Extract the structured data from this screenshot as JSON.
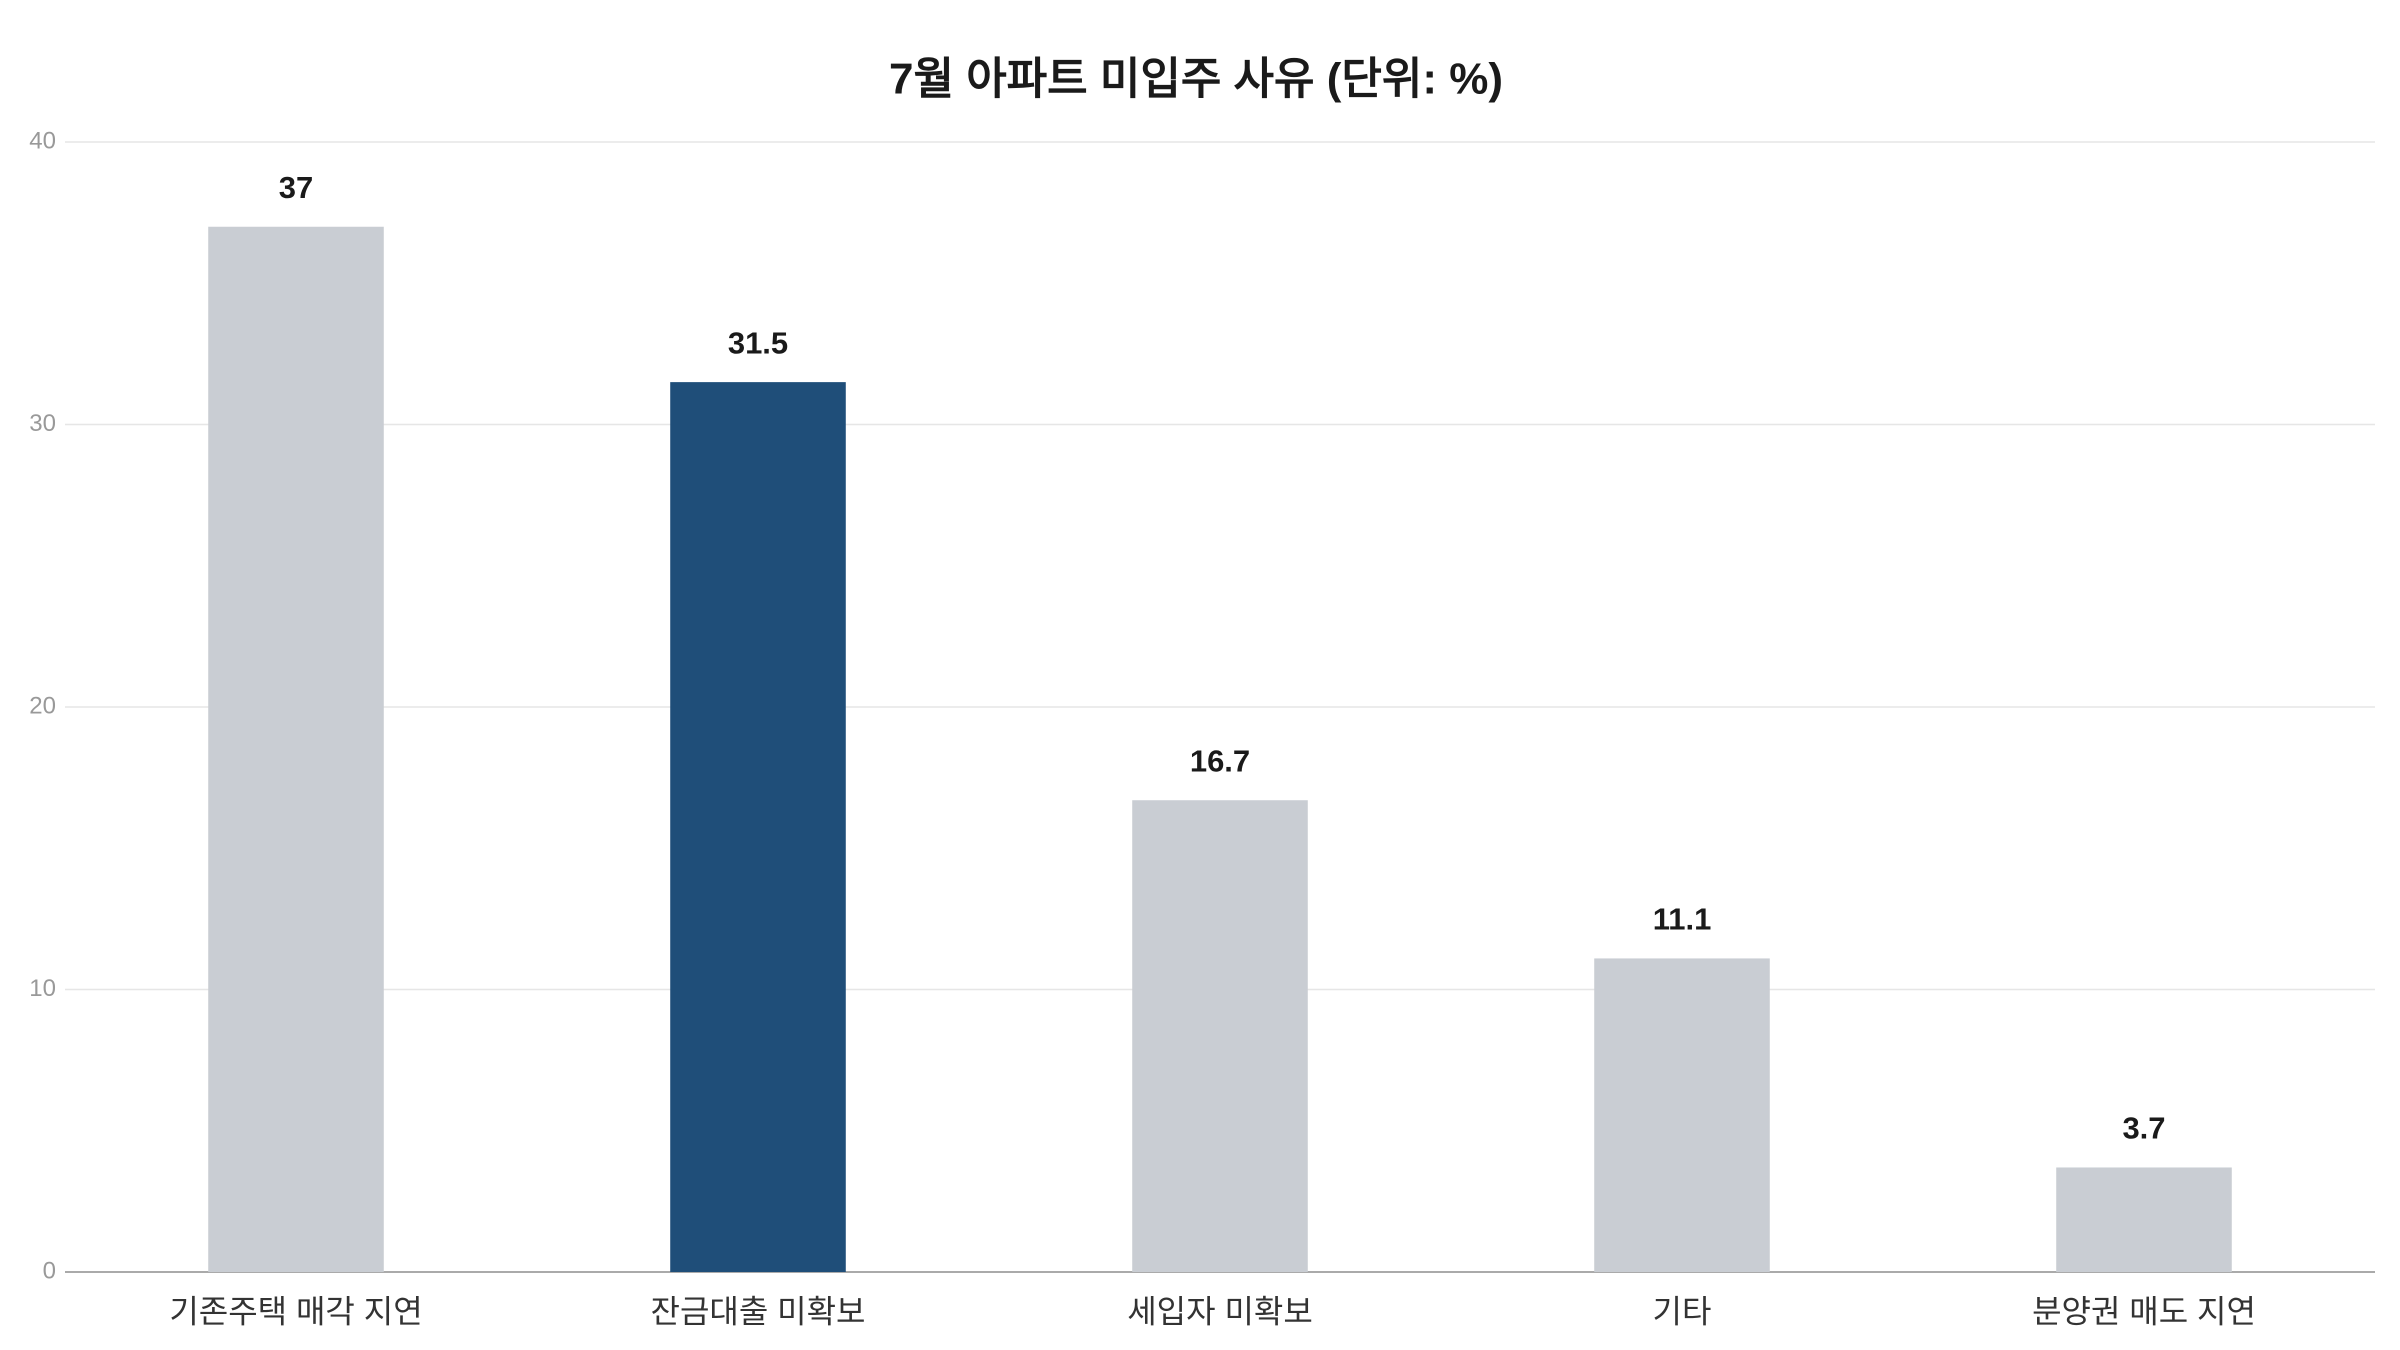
{
  "chart_data": {
    "type": "bar",
    "title": "7월 아파트 미입주 사유 (단위: %)",
    "categories": [
      "기존주택 매각 지연",
      "잔금대출 미확보",
      "세입자 미확보",
      "기타",
      "분양권 매도 지연"
    ],
    "values": [
      37,
      31.5,
      16.7,
      11.1,
      3.7
    ],
    "colors": [
      "#c9cdd3",
      "#1f4e79",
      "#c9cdd3",
      "#c9cdd3",
      "#c9cdd3"
    ],
    "ylim": [
      0,
      40
    ],
    "yticks": [
      0,
      10,
      20,
      30,
      40
    ],
    "grid": true
  }
}
